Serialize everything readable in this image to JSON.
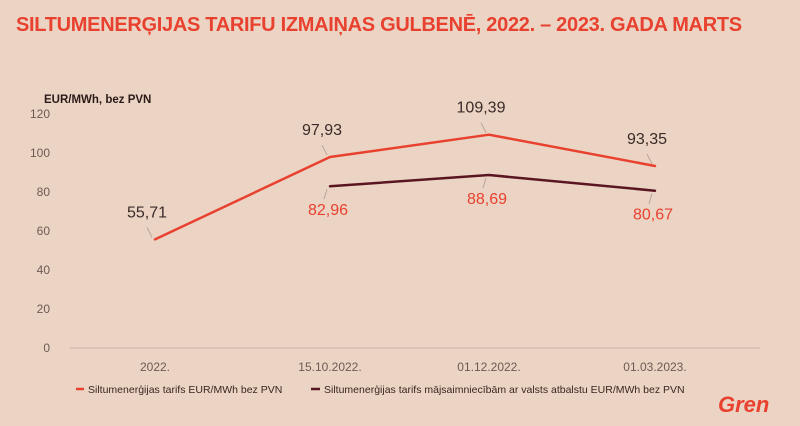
{
  "page": {
    "title": "SILTUMENERĢIJAS TARIFU IZMAIŅAS GULBENĒ, 2022. – 2023. GADA MARTS"
  },
  "logo": {
    "text": "Gren"
  },
  "colors": {
    "background": "#ecd4c4",
    "series_a": "#e8412f",
    "series_b": "#5a1620",
    "title": "#e8412f",
    "label_dark": "#3a2a28"
  },
  "chart_data": {
    "type": "line",
    "title": "SILTUMENERĢIJAS TARIFU IZMAIŅAS GULBENĒ, 2022. – 2023. GADA MARTS",
    "ylabel": "EUR/MWh, bez PVN",
    "xlabel": "",
    "categories": [
      "2022.",
      "15.10.2022.",
      "01.12.2022.",
      "01.03.2023."
    ],
    "ylim": [
      0,
      120
    ],
    "yticks": [
      "0",
      "20",
      "40",
      "60",
      "80",
      "100",
      "120"
    ],
    "grid": false,
    "legend_position": "bottom",
    "series": [
      {
        "name": "Siltumenerģijas tarifs EUR/MWh bez PVN",
        "values": [
          55.71,
          97.93,
          109.39,
          93.35
        ],
        "labels": [
          "55,71",
          "97,93",
          "109,39",
          "93,35"
        ],
        "color": "#e8412f"
      },
      {
        "name": "Siltumenerģijas tarifs mājsaimniecībām ar valsts atbalstu EUR/MWh bez PVN",
        "values": [
          null,
          82.96,
          88.69,
          80.67
        ],
        "labels": [
          "",
          "82,96",
          "88,69",
          "80,67"
        ],
        "color": "#5a1620"
      }
    ]
  }
}
